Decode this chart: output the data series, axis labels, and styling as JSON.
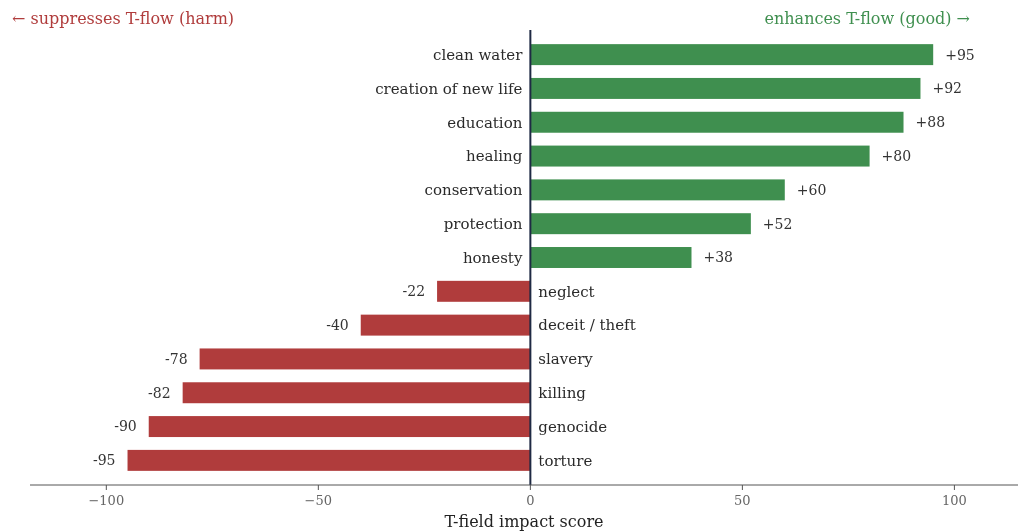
{
  "chart_data": {
    "type": "bar",
    "orientation": "horizontal",
    "xlabel": "T-field impact score",
    "annotations": [
      "← suppresses T-flow  (harm)",
      "enhances T-flow  (good) →"
    ],
    "categories": [
      "clean water",
      "creation of new life",
      "education",
      "healing",
      "conservation",
      "protection",
      "honesty",
      "neglect",
      "deceit / theft",
      "slavery",
      "killing",
      "genocide",
      "torture"
    ],
    "values": [
      95,
      92,
      88,
      80,
      60,
      52,
      38,
      -22,
      -40,
      -78,
      -82,
      -90,
      -95
    ],
    "value_labels": [
      "+95",
      "+92",
      "+88",
      "+80",
      "+60",
      "+52",
      "+38",
      "-22",
      "-40",
      "-78",
      "-82",
      "-90",
      "-95"
    ],
    "colors": [
      "#3f8f4f",
      "#3f8f4f",
      "#3f8f4f",
      "#3f8f4f",
      "#3f8f4f",
      "#3f8f4f",
      "#3f8f4f",
      "#b03c3c",
      "#b03c3c",
      "#b03c3c",
      "#b03c3c",
      "#b03c3c",
      "#b03c3c"
    ],
    "xlim": [
      -118,
      115
    ],
    "xticks": [
      {
        "value": -100,
        "label": "−100"
      },
      {
        "value": -50,
        "label": "−50"
      },
      0,
      50,
      100
    ],
    "grid": false
  }
}
